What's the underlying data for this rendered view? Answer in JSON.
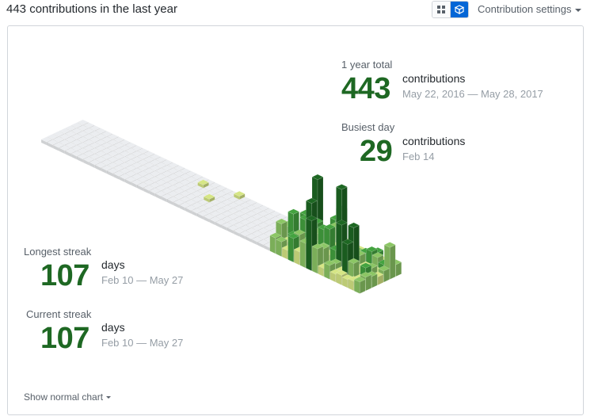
{
  "header": {
    "title": "443 contributions in the last year",
    "settings_label": "Contribution settings"
  },
  "view_toggle": {
    "grid_icon": "grid-icon",
    "cube_icon": "cube-icon",
    "active": "cube"
  },
  "stats": {
    "year_total": {
      "label": "1 year total",
      "value": "443",
      "unit": "contributions",
      "range": "May 22, 2016 — May 28, 2017"
    },
    "busiest_day": {
      "label": "Busiest day",
      "value": "29",
      "unit": "contributions",
      "range": "Feb 14"
    },
    "longest_streak": {
      "label": "Longest streak",
      "value": "107",
      "unit": "days",
      "range": "Feb 10 — May 27"
    },
    "current_streak": {
      "label": "Current streak",
      "value": "107",
      "unit": "days",
      "range": "Feb 10 — May 27"
    }
  },
  "footer": {
    "show_normal_label": "Show normal chart"
  },
  "colors": {
    "accent": "#1e6823",
    "empty": "#ebedf0",
    "level1": "#d6e685",
    "level2": "#8cc665",
    "level3": "#44a340",
    "level4": "#1e6823"
  }
}
